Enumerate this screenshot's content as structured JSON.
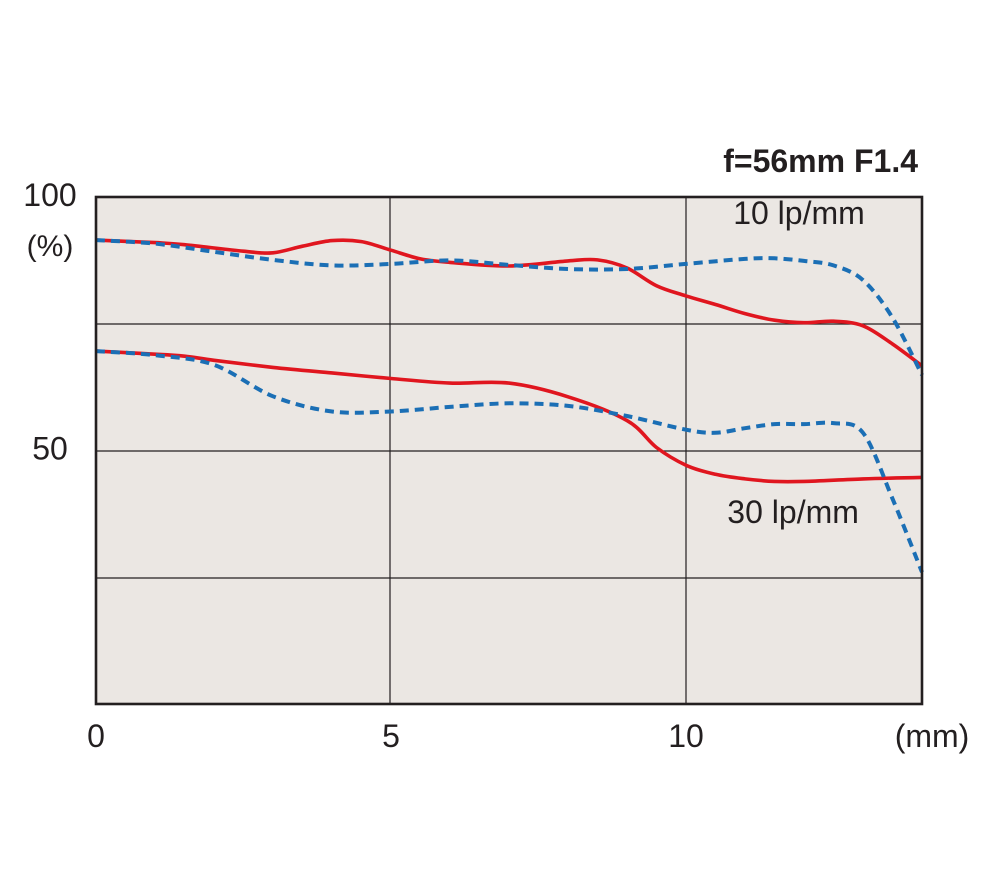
{
  "chart_data": {
    "type": "line",
    "title": "f=56mm F1.4",
    "xlabel": "(mm)",
    "ylabel": "(%)",
    "xlim": [
      0,
      14
    ],
    "ylim": [
      0,
      100
    ],
    "x_ticks": [
      0,
      5,
      10
    ],
    "y_ticks": [
      50,
      100
    ],
    "grid": true,
    "plot_background": "#ebe7e3",
    "series": [
      {
        "group": "10 lp/mm",
        "style": "solid",
        "color": "#e0161f",
        "x": [
          0,
          1,
          1.5,
          2.5,
          3,
          3.5,
          4,
          4.5,
          5,
          5.5,
          6,
          7,
          8,
          8.5,
          9,
          9.5,
          10,
          10.5,
          11,
          11.5,
          12,
          12.5,
          13,
          13.5,
          14
        ],
        "y": [
          91.5,
          91,
          90.6,
          89.3,
          89,
          90.3,
          91.4,
          91.2,
          89.5,
          87.8,
          87.1,
          86.4,
          87.4,
          87.6,
          86,
          82.5,
          80.5,
          78.8,
          77,
          75.7,
          75.2,
          75.5,
          74.6,
          71,
          66.7
        ]
      },
      {
        "group": "10 lp/mm",
        "style": "dashed",
        "color": "#1b6fb5",
        "x": [
          0,
          1,
          2,
          3,
          4,
          5,
          6,
          7,
          8,
          9,
          10,
          11,
          11.5,
          12,
          12.5,
          13,
          13.5,
          14
        ],
        "y": [
          91.5,
          90.8,
          89.2,
          87.6,
          86.5,
          86.8,
          87.5,
          86.6,
          85.8,
          85.8,
          86.8,
          87.8,
          87.9,
          87.4,
          86.5,
          83.6,
          76.2,
          64.9
        ]
      },
      {
        "group": "30 lp/mm",
        "style": "solid",
        "color": "#e0161f",
        "x": [
          0,
          1,
          1.5,
          2,
          3,
          4,
          5,
          6,
          7,
          8,
          9,
          9.5,
          10,
          10.5,
          11,
          11.5,
          12,
          13,
          14
        ],
        "y": [
          69.6,
          69,
          68.6,
          67.8,
          66.4,
          65.3,
          64.2,
          63.3,
          63.3,
          60.6,
          55.9,
          50.6,
          47.1,
          45.3,
          44.4,
          43.9,
          43.9,
          44.4,
          44.7
        ]
      },
      {
        "group": "30 lp/mm",
        "style": "dashed",
        "color": "#1b6fb5",
        "x": [
          0,
          1,
          2,
          3,
          4,
          5,
          6,
          7,
          8,
          9,
          10,
          10.5,
          11,
          11.5,
          12,
          12.5,
          13,
          13.5,
          14
        ],
        "y": [
          69.6,
          68.8,
          66.9,
          60.7,
          57.7,
          57.7,
          58.6,
          59.3,
          58.8,
          56.8,
          54.1,
          53.5,
          54.4,
          55.2,
          55.2,
          55.4,
          53.5,
          40.5,
          26
        ]
      }
    ],
    "annotations": [
      {
        "text": "10 lp/mm",
        "x": 10.8,
        "y": 94.7
      },
      {
        "text": "30 lp/mm",
        "x": 10.7,
        "y": 35.7
      }
    ]
  }
}
